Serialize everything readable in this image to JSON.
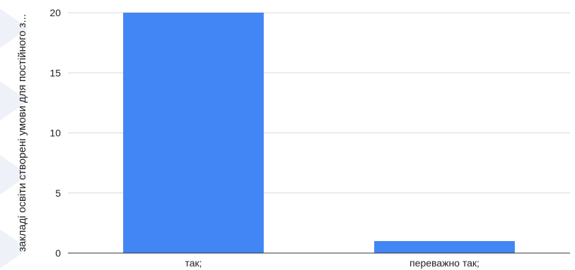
{
  "chart_data": {
    "type": "bar",
    "title": "",
    "xlabel": "",
    "ylabel": "закладі освіти створені умови для постійного з...",
    "categories": [
      "так;",
      "переважно так;"
    ],
    "values": [
      20,
      1
    ],
    "ylim": [
      0,
      20
    ],
    "yticks": [
      0,
      5,
      10,
      15,
      20
    ],
    "grid": true,
    "legend": "none",
    "bar_color": "#4285f4",
    "grid_color": "#d9d9d9",
    "axis_color": "#333333"
  }
}
